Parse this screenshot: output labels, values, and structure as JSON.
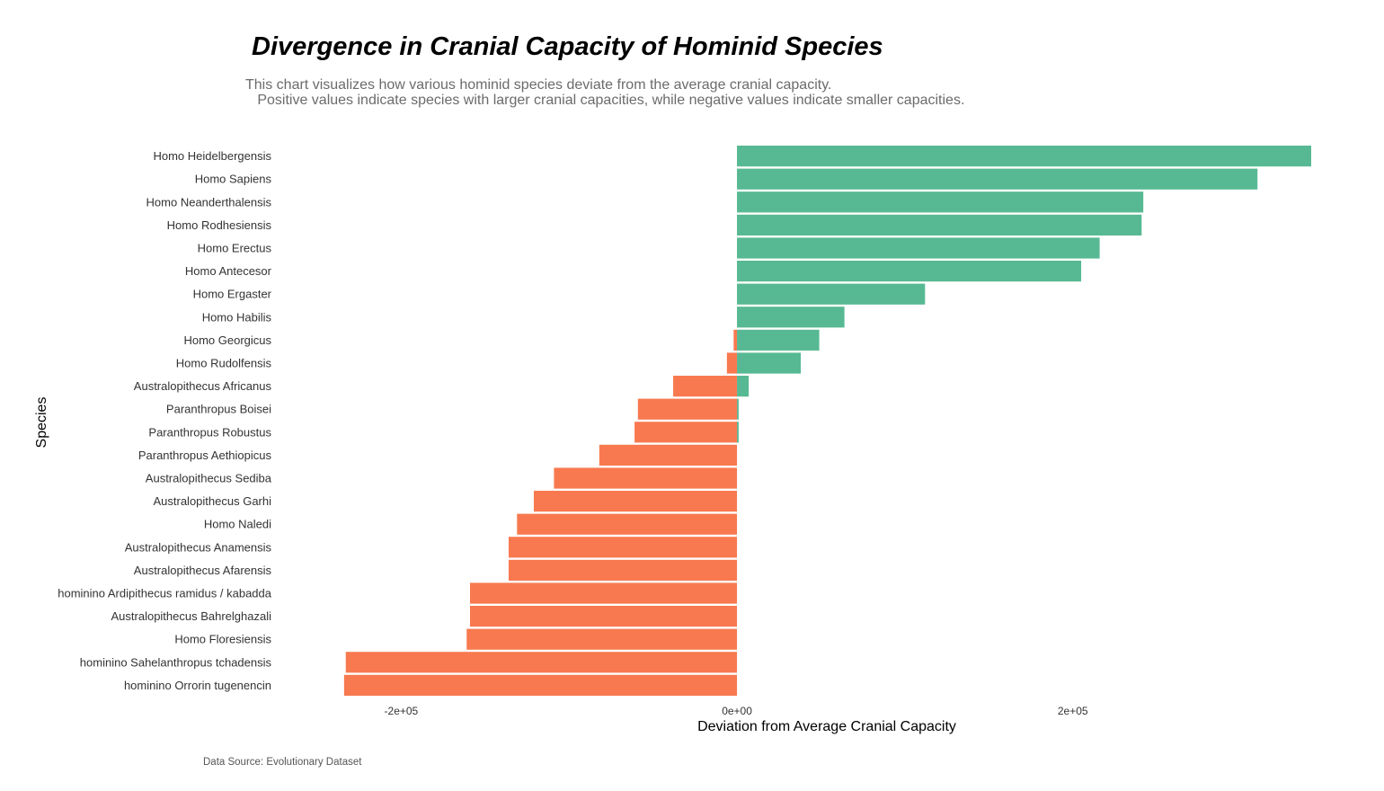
{
  "chart_data": {
    "type": "bar",
    "orientation": "horizontal",
    "title": "Divergence in Cranial Capacity of Hominid Species",
    "subtitle_lines": [
      "This chart visualizes how various hominid species deviate from the average cranial capacity.",
      "   Positive values indicate species with larger cranial capacities, while negative values indicate smaller capacities."
    ],
    "xlabel": "Deviation from Average Cranial Capacity",
    "ylabel": "Species",
    "caption": "Data Source: Evolutionary Dataset",
    "xlim": [
      -235000,
      342000
    ],
    "x_ticks": [
      {
        "value": -200000,
        "label": "-2e+05"
      },
      {
        "value": 0,
        "label": "0e+00"
      },
      {
        "value": 200000,
        "label": "2e+05"
      }
    ],
    "grid": false,
    "legend": "none",
    "colors": {
      "positive": "#57b993",
      "negative": "#f8794f"
    },
    "rows": [
      {
        "label": "Homo Heidelbergensis",
        "bars": [
          {
            "value": 342000,
            "sign": "positive"
          }
        ]
      },
      {
        "label": "Homo Sapiens",
        "bars": [
          {
            "value": 310000,
            "sign": "positive"
          }
        ]
      },
      {
        "label": "Homo Neanderthalensis",
        "bars": [
          {
            "value": 242000,
            "sign": "positive"
          }
        ]
      },
      {
        "label": "Homo Rodhesiensis",
        "bars": [
          {
            "value": 241000,
            "sign": "positive"
          }
        ]
      },
      {
        "label": "Homo Erectus",
        "bars": [
          {
            "value": 216000,
            "sign": "positive"
          }
        ]
      },
      {
        "label": "Homo Antecesor",
        "bars": [
          {
            "value": 205000,
            "sign": "positive"
          }
        ]
      },
      {
        "label": "Homo Ergaster",
        "bars": [
          {
            "value": 112000,
            "sign": "positive"
          }
        ]
      },
      {
        "label": "Homo Habilis",
        "bars": [
          {
            "value": 64000,
            "sign": "positive"
          }
        ]
      },
      {
        "label": "Homo Georgicus",
        "bars": [
          {
            "value": 49000,
            "sign": "positive"
          },
          {
            "value": -2000,
            "sign": "negative"
          }
        ]
      },
      {
        "label": "Homo Rudolfensis",
        "bars": [
          {
            "value": 38000,
            "sign": "positive"
          },
          {
            "value": -6000,
            "sign": "negative"
          }
        ]
      },
      {
        "label": "Australopithecus Africanus",
        "bars": [
          {
            "value": 7000,
            "sign": "positive"
          },
          {
            "value": -38000,
            "sign": "negative"
          }
        ]
      },
      {
        "label": "Paranthropus Boisei",
        "bars": [
          {
            "value": 1000,
            "sign": "positive"
          },
          {
            "value": -59000,
            "sign": "negative"
          }
        ]
      },
      {
        "label": "Paranthropus Robustus",
        "bars": [
          {
            "value": 1000,
            "sign": "positive"
          },
          {
            "value": -61000,
            "sign": "negative"
          }
        ]
      },
      {
        "label": "Paranthropus Aethiopicus",
        "bars": [
          {
            "value": -82000,
            "sign": "negative"
          }
        ]
      },
      {
        "label": "Australopithecus Sediba",
        "bars": [
          {
            "value": -109000,
            "sign": "negative"
          }
        ]
      },
      {
        "label": "Australopithecus Garhi",
        "bars": [
          {
            "value": -121000,
            "sign": "negative"
          }
        ]
      },
      {
        "label": "Homo Naledi",
        "bars": [
          {
            "value": -131000,
            "sign": "negative"
          }
        ]
      },
      {
        "label": "Australopithecus Anamensis",
        "bars": [
          {
            "value": -136000,
            "sign": "negative"
          }
        ]
      },
      {
        "label": "Australopithecus Afarensis",
        "bars": [
          {
            "value": -136000,
            "sign": "negative"
          }
        ]
      },
      {
        "label": "hominino Ardipithecus ramidus / kabadda",
        "bars": [
          {
            "value": -159000,
            "sign": "negative"
          }
        ]
      },
      {
        "label": "Australopithecus Bahrelghazali",
        "bars": [
          {
            "value": -159000,
            "sign": "negative"
          }
        ]
      },
      {
        "label": "Homo Floresiensis",
        "bars": [
          {
            "value": -161000,
            "sign": "negative"
          }
        ]
      },
      {
        "label": "hominino Sahelanthropus tchadensis",
        "bars": [
          {
            "value": -233000,
            "sign": "negative"
          }
        ]
      },
      {
        "label": "hominino Orrorin tugenencin",
        "bars": [
          {
            "value": -234000,
            "sign": "negative"
          }
        ]
      }
    ]
  }
}
